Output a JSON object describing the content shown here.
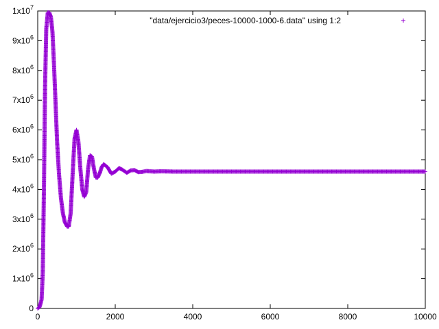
{
  "chart_data": {
    "type": "scatter",
    "title": "",
    "xlabel": "",
    "ylabel": "",
    "xlim": [
      0,
      10000
    ],
    "ylim": [
      0,
      10000000
    ],
    "xticks": [
      {
        "value": 0,
        "label": "0"
      },
      {
        "value": 2000,
        "label": "2000"
      },
      {
        "value": 4000,
        "label": "4000"
      },
      {
        "value": 6000,
        "label": "6000"
      },
      {
        "value": 8000,
        "label": "8000"
      },
      {
        "value": 10000,
        "label": "10000"
      }
    ],
    "yticks": [
      {
        "value": 0,
        "mantissa": "0",
        "exponent": ""
      },
      {
        "value": 1000000,
        "mantissa": "1x10",
        "exponent": "6"
      },
      {
        "value": 2000000,
        "mantissa": "2x10",
        "exponent": "6"
      },
      {
        "value": 3000000,
        "mantissa": "3x10",
        "exponent": "6"
      },
      {
        "value": 4000000,
        "mantissa": "4x10",
        "exponent": "6"
      },
      {
        "value": 5000000,
        "mantissa": "5x10",
        "exponent": "6"
      },
      {
        "value": 6000000,
        "mantissa": "6x10",
        "exponent": "6"
      },
      {
        "value": 7000000,
        "mantissa": "7x10",
        "exponent": "6"
      },
      {
        "value": 8000000,
        "mantissa": "8x10",
        "exponent": "6"
      },
      {
        "value": 9000000,
        "mantissa": "9x10",
        "exponent": "6"
      },
      {
        "value": 10000000,
        "mantissa": "1x10",
        "exponent": "7"
      }
    ],
    "legend": {
      "position": "top-right",
      "marker": "plus"
    },
    "grid": false,
    "series": [
      {
        "name": "\"data/ejercicio3/peces-10000-1000-6.data\"  using 1:2",
        "color": "#9400d3",
        "marker": "plus",
        "points": [
          [
            0,
            0
          ],
          [
            50,
            50000
          ],
          [
            100,
            300000
          ],
          [
            130,
            1200000
          ],
          [
            160,
            4000000
          ],
          [
            190,
            7500000
          ],
          [
            220,
            9400000
          ],
          [
            260,
            9950000
          ],
          [
            300,
            9950000
          ],
          [
            340,
            9800000
          ],
          [
            380,
            9300000
          ],
          [
            420,
            8200000
          ],
          [
            460,
            6900000
          ],
          [
            500,
            5600000
          ],
          [
            550,
            4500000
          ],
          [
            600,
            3700000
          ],
          [
            650,
            3200000
          ],
          [
            700,
            2900000
          ],
          [
            760,
            2750000
          ],
          [
            800,
            2750000
          ],
          [
            850,
            3200000
          ],
          [
            900,
            4500000
          ],
          [
            950,
            5700000
          ],
          [
            1000,
            6000000
          ],
          [
            1050,
            5600000
          ],
          [
            1100,
            4700000
          ],
          [
            1150,
            4000000
          ],
          [
            1200,
            3750000
          ],
          [
            1250,
            3900000
          ],
          [
            1300,
            4700000
          ],
          [
            1350,
            5150000
          ],
          [
            1400,
            5100000
          ],
          [
            1450,
            4700000
          ],
          [
            1500,
            4400000
          ],
          [
            1550,
            4400000
          ],
          [
            1600,
            4550000
          ],
          [
            1650,
            4750000
          ],
          [
            1700,
            4850000
          ],
          [
            1800,
            4750000
          ],
          [
            1900,
            4530000
          ],
          [
            2000,
            4600000
          ],
          [
            2100,
            4720000
          ],
          [
            2200,
            4650000
          ],
          [
            2300,
            4560000
          ],
          [
            2400,
            4640000
          ],
          [
            2500,
            4650000
          ],
          [
            2600,
            4580000
          ],
          [
            2700,
            4590000
          ],
          [
            2800,
            4620000
          ],
          [
            3000,
            4600000
          ],
          [
            3200,
            4610000
          ],
          [
            3500,
            4600000
          ],
          [
            4000,
            4600000
          ],
          [
            5000,
            4600000
          ],
          [
            6000,
            4600000
          ],
          [
            7000,
            4600000
          ],
          [
            8000,
            4600000
          ],
          [
            9000,
            4600000
          ],
          [
            10000,
            4600000
          ]
        ]
      }
    ]
  }
}
